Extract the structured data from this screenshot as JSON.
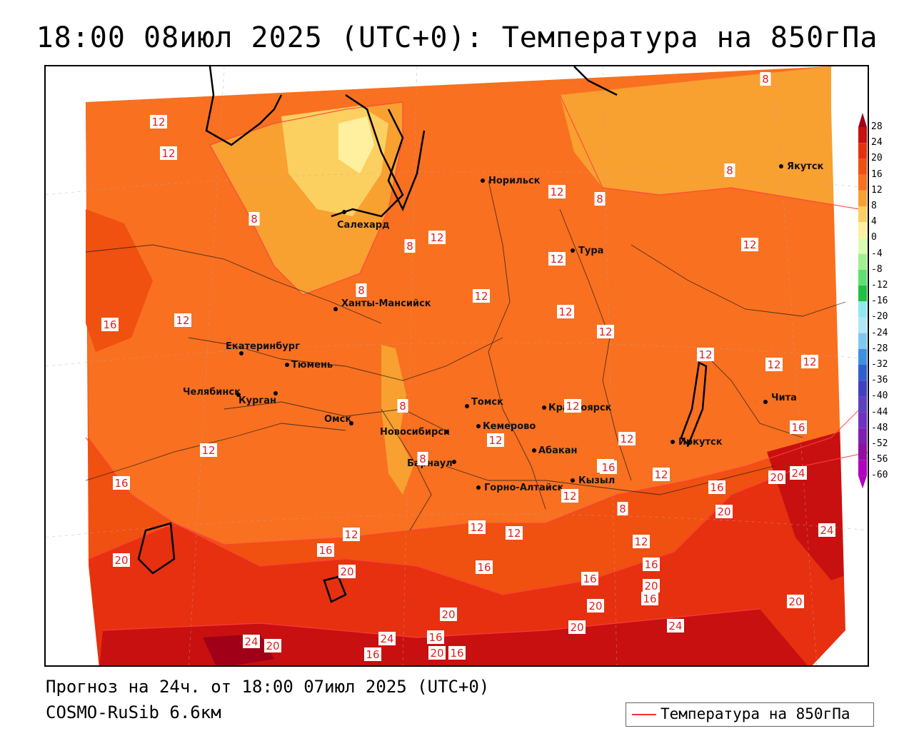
{
  "title": "18:00 08июл 2025 (UTC+0): Температура на 850гПа",
  "footer": {
    "forecast": "Прогноз на 24ч. от 18:00 07июл 2025 (UTC+0)",
    "model": "COSMO-RuSib 6.6км"
  },
  "legend": {
    "label": "Температура на 850гПа",
    "color": "#ff3030"
  },
  "colorbar": {
    "levels": [
      "28",
      "24",
      "20",
      "16",
      "12",
      "8",
      "4",
      "0",
      "-4",
      "-8",
      "-12",
      "-16",
      "-20",
      "-24",
      "-28",
      "-32",
      "-36",
      "-40",
      "-44",
      "-48",
      "-52",
      "-56",
      "-60"
    ],
    "colors": [
      "#a00018",
      "#c81010",
      "#e63010",
      "#f05010",
      "#f87020",
      "#f8a030",
      "#fcd060",
      "#fff0a0",
      "#d8ffb0",
      "#a0f090",
      "#60e070",
      "#20c040",
      "#90e8f0",
      "#b0e8f8",
      "#80c8f0",
      "#4090e0",
      "#3060d0",
      "#4040c0",
      "#6040c0",
      "#7030c0",
      "#8020b0",
      "#9010a0",
      "#b000c0"
    ]
  },
  "cities": [
    {
      "name": "Норильск"
    },
    {
      "name": "Якутск"
    },
    {
      "name": "Салехард"
    },
    {
      "name": "Тура"
    },
    {
      "name": "Ханты-Мансийск"
    },
    {
      "name": "Екатеринбург"
    },
    {
      "name": "Тюмень"
    },
    {
      "name": "Челябинск"
    },
    {
      "name": "Курган"
    },
    {
      "name": "Омск"
    },
    {
      "name": "Новосибирск"
    },
    {
      "name": "Томск"
    },
    {
      "name": "Кемерово"
    },
    {
      "name": "Красноярск"
    },
    {
      "name": "Барнаул"
    },
    {
      "name": "Абакан"
    },
    {
      "name": "Горно-Алтайск"
    },
    {
      "name": "Кызыл"
    },
    {
      "name": "Иркутск"
    },
    {
      "name": "Чита"
    }
  ],
  "isotherm_labels": [
    "8",
    "12",
    "16",
    "20",
    "24"
  ]
}
